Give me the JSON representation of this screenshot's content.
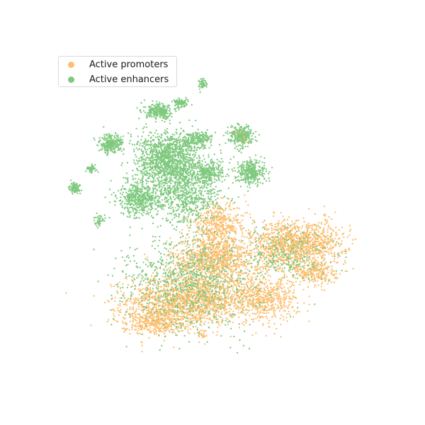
{
  "chart_data": {
    "type": "scatter",
    "title": "",
    "xlabel": "",
    "ylabel": "",
    "axes_visible": false,
    "grid": false,
    "legend_placement": "top-left",
    "series": [
      {
        "name": "Active promoters",
        "color": "#fdbf6f",
        "clusters": [
          {
            "center": [
              -10,
              -40
            ],
            "spread": [
              34,
              14
            ],
            "points": 1500
          },
          {
            "center": [
              5,
              -16
            ],
            "spread": [
              24,
              13
            ],
            "points": 1000
          },
          {
            "center": [
              8,
              5
            ],
            "spread": [
              16,
              12
            ],
            "points": 450
          },
          {
            "center": [
              35,
              -40
            ],
            "spread": [
              20,
              12
            ],
            "points": 600
          },
          {
            "center": [
              48,
              -8
            ],
            "spread": [
              18,
              14
            ],
            "points": 650
          },
          {
            "center": [
              65,
              -5
            ],
            "spread": [
              20,
              12
            ],
            "points": 550
          },
          {
            "center": [
              68,
              -24
            ],
            "spread": [
              12,
              8
            ],
            "points": 250
          },
          {
            "center": [
              -32,
              -53
            ],
            "spread": [
              18,
              8
            ],
            "points": 450
          },
          {
            "center": [
              22,
              60
            ],
            "spread": [
              4,
              4
            ],
            "points": 60
          },
          {
            "center": [
              -2,
              -62
            ],
            "spread": [
              3,
              3
            ],
            "points": 25
          }
        ]
      },
      {
        "name": "Active enhancers",
        "color": "#7fc97f",
        "clusters": [
          {
            "center": [
              -22,
              45
            ],
            "spread": [
              18,
              16
            ],
            "points": 1400
          },
          {
            "center": [
              -40,
              22
            ],
            "spread": [
              12,
              10
            ],
            "points": 500
          },
          {
            "center": [
              -10,
              22
            ],
            "spread": [
              18,
              14
            ],
            "points": 550
          },
          {
            "center": [
              -58,
              55
            ],
            "spread": [
              7,
              5
            ],
            "points": 260
          },
          {
            "center": [
              -28,
              75
            ],
            "spread": [
              8,
              4
            ],
            "points": 260
          },
          {
            "center": [
              -5,
              58
            ],
            "spread": [
              8,
              4
            ],
            "points": 200
          },
          {
            "center": [
              2,
              38
            ],
            "spread": [
              8,
              6
            ],
            "points": 250
          },
          {
            "center": [
              22,
              60
            ],
            "spread": [
              7,
              6
            ],
            "points": 260
          },
          {
            "center": [
              28,
              38
            ],
            "spread": [
              8,
              7
            ],
            "points": 350
          },
          {
            "center": [
              -15,
              80
            ],
            "spread": [
              4,
              2.5
            ],
            "points": 90
          },
          {
            "center": [
              -70,
              40
            ],
            "spread": [
              3,
              2
            ],
            "points": 60
          },
          {
            "center": [
              -80,
              28
            ],
            "spread": [
              3,
              3
            ],
            "points": 90
          },
          {
            "center": [
              -2,
              92
            ],
            "spread": [
              2,
              2.5
            ],
            "points": 45
          },
          {
            "center": [
              -10,
              -30
            ],
            "spread": [
              34,
              26
            ],
            "points": 700
          },
          {
            "center": [
              50,
              -12
            ],
            "spread": [
              26,
              14
            ],
            "points": 250
          },
          {
            "center": [
              -65,
              8
            ],
            "spread": [
              4,
              3
            ],
            "points": 45
          }
        ]
      }
    ]
  }
}
